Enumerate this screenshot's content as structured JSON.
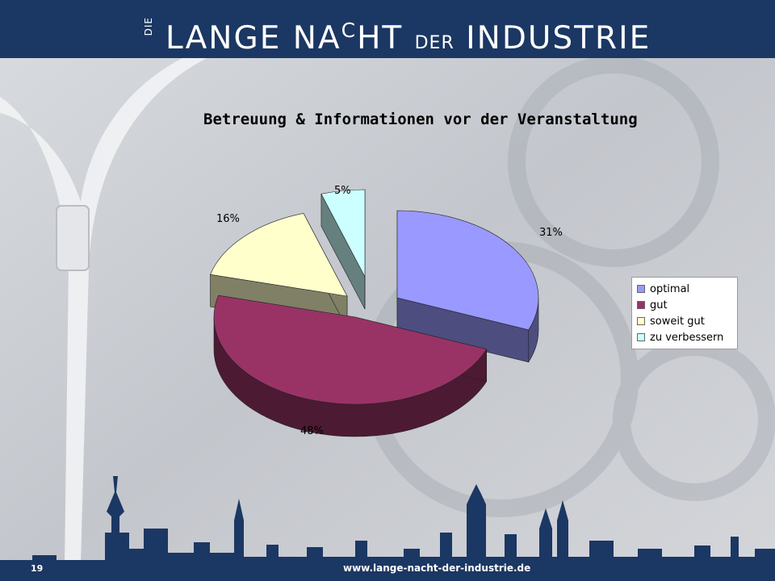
{
  "header": {
    "brand_die": "DIE",
    "brand_part1": "LANGE NA",
    "brand_c": "C",
    "brand_part2": "HT ",
    "brand_der": "DER",
    "brand_part3": " INDUSTRIE"
  },
  "chart_data": {
    "type": "pie",
    "title": "Betreuung & Informationen vor der Veranstaltung",
    "categories": [
      "optimal",
      "gut",
      "soweit gut",
      "zu verbessern"
    ],
    "values": [
      31,
      48,
      16,
      5
    ],
    "labels": [
      "31%",
      "48%",
      "16%",
      "5%"
    ],
    "colors": [
      "#9999ff",
      "#993366",
      "#ffffcc",
      "#ccffff"
    ],
    "side_colors": [
      "#4d4d80",
      "#4d1a33",
      "#808066",
      "#668080"
    ],
    "exploded": true,
    "three_d": true,
    "legend_position": "right"
  },
  "footer": {
    "page_number": "19",
    "url": "www.lange-nacht-der-industrie.de"
  }
}
